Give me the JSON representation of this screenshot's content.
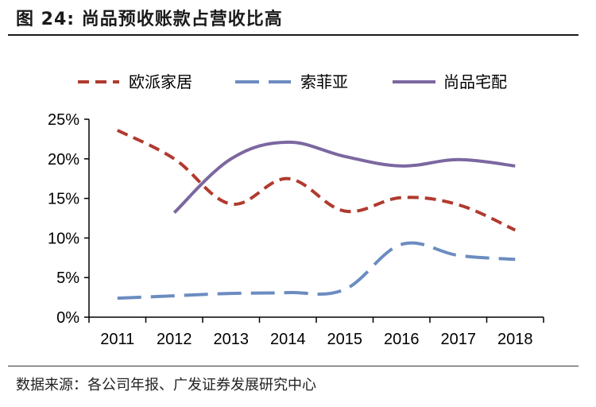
{
  "figure": {
    "title": "图 24: 尚品预收账款占营收比高",
    "source": "数据来源：各公司年报、广发证券发展研究中心"
  },
  "colors": {
    "欧派家居": "#b03a2e",
    "索菲亚": "#6b8cc0",
    "尚品宅配": "#7b67a0"
  },
  "chart_data": {
    "type": "line",
    "title": "",
    "xlabel": "",
    "ylabel": "",
    "categories": [
      "2011",
      "2012",
      "2013",
      "2014",
      "2015",
      "2016",
      "2017",
      "2018"
    ],
    "ylim": [
      0,
      25
    ],
    "yticks": [
      "0%",
      "5%",
      "10%",
      "15%",
      "20%",
      "25%"
    ],
    "ytick_values": [
      0,
      5,
      10,
      15,
      20,
      25
    ],
    "legend_position": "top",
    "series": [
      {
        "name": "欧派家居",
        "style": "dashed",
        "values": [
          23.6,
          20,
          14.3,
          17.5,
          13.4,
          15.1,
          14.2,
          11.0
        ]
      },
      {
        "name": "索菲亚",
        "style": "long-dash",
        "values": [
          2.4,
          2.7,
          3.0,
          3.1,
          3.5,
          9.2,
          7.8,
          7.3
        ]
      },
      {
        "name": "尚品宅配",
        "style": "solid",
        "values": [
          null,
          13.2,
          20.0,
          22.1,
          20.3,
          19.1,
          19.9,
          19.1
        ]
      }
    ]
  }
}
